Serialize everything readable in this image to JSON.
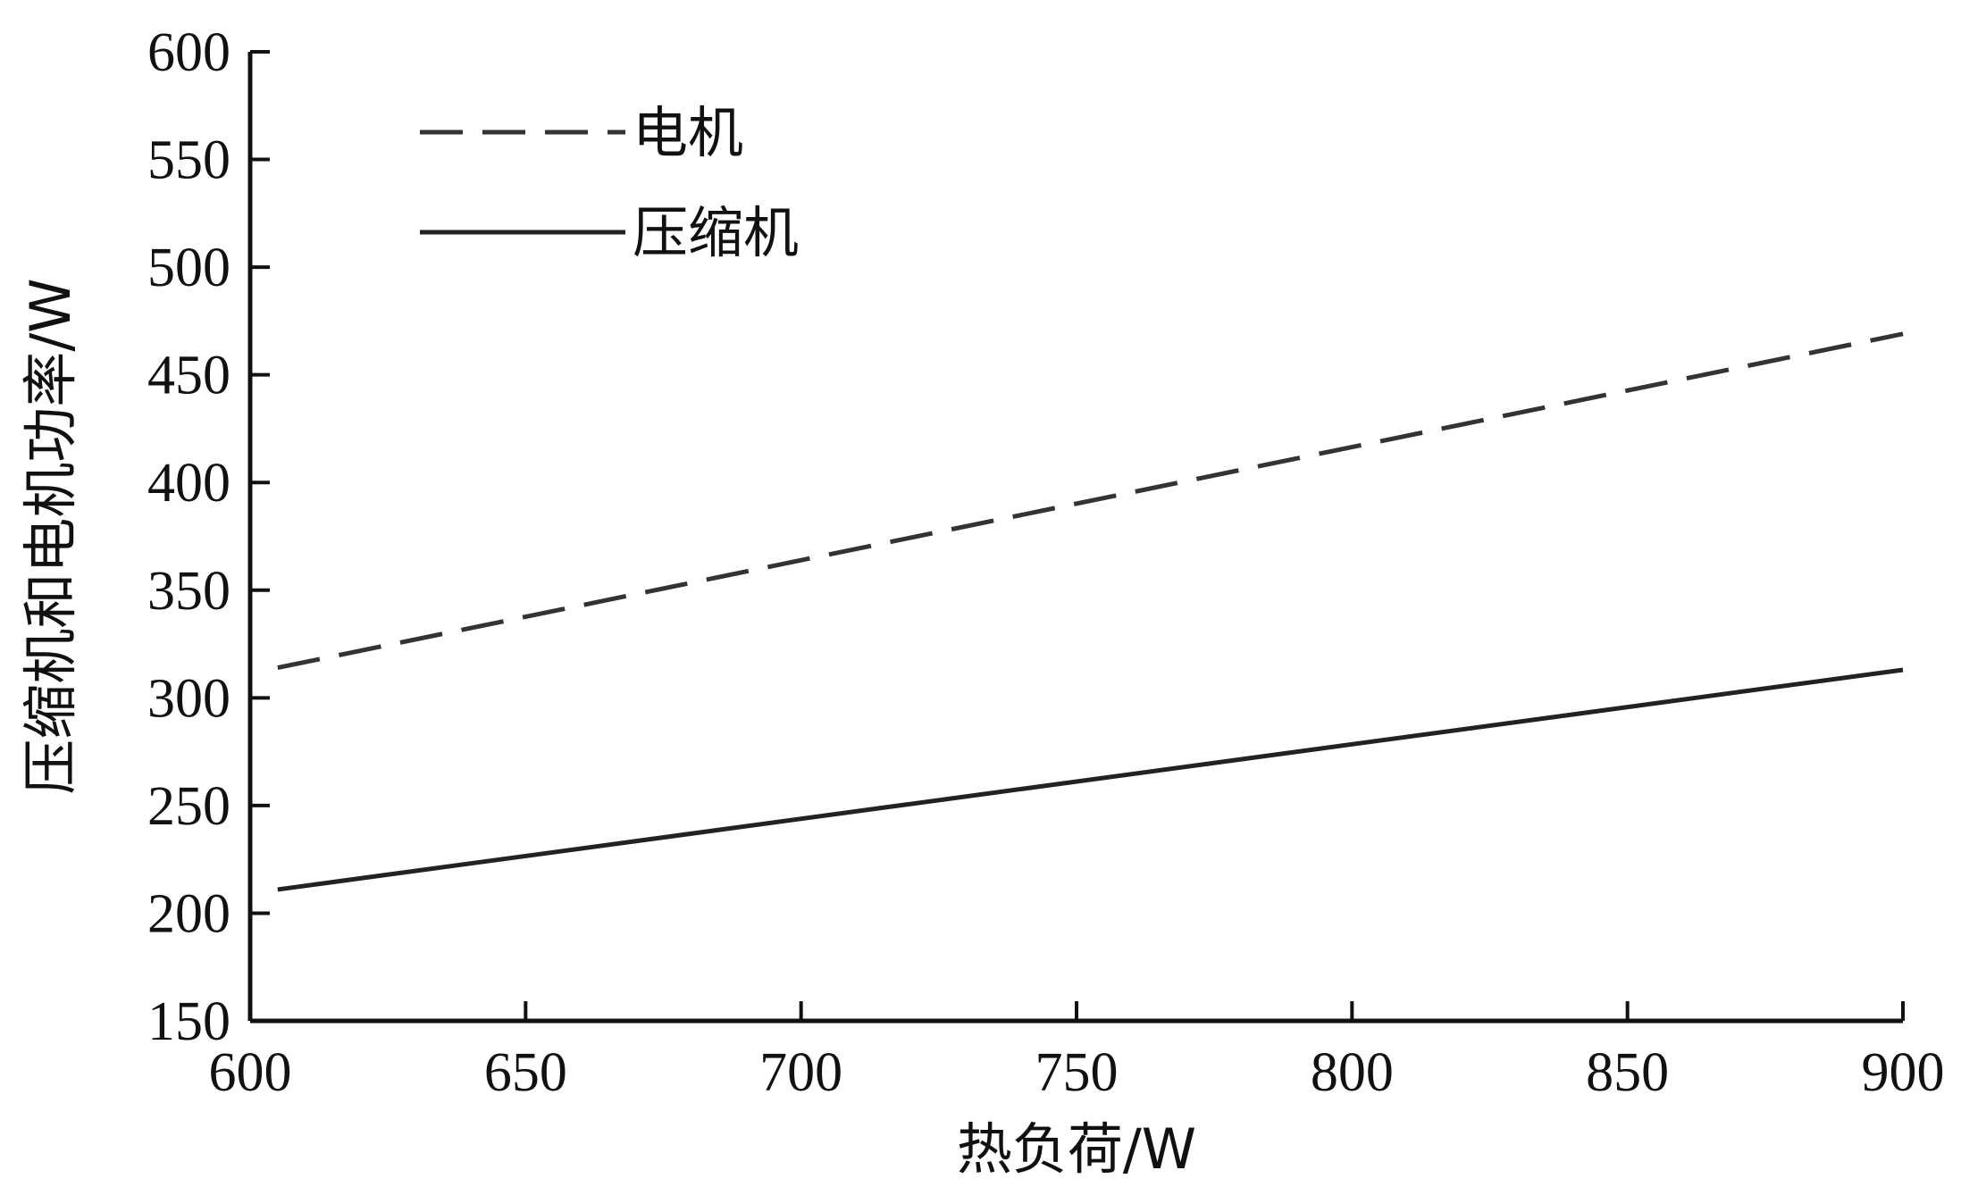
{
  "chart_data": {
    "type": "line",
    "title": "",
    "xlabel": "热负荷/W",
    "ylabel": "压缩机和电机功率/W",
    "xlim": [
      600,
      900
    ],
    "ylim": [
      150,
      600
    ],
    "xticks": [
      600,
      650,
      700,
      750,
      800,
      850,
      900
    ],
    "yticks": [
      150,
      200,
      250,
      300,
      350,
      400,
      450,
      500,
      550,
      600
    ],
    "grid": false,
    "legend_position": "top-left",
    "series": [
      {
        "name": "电机",
        "style": "dashed",
        "color": "#333333",
        "x": [
          605,
          900
        ],
        "y": [
          314,
          469
        ]
      },
      {
        "name": "压缩机",
        "style": "solid",
        "color": "#222222",
        "x": [
          605,
          900
        ],
        "y": [
          211,
          313
        ]
      }
    ]
  }
}
